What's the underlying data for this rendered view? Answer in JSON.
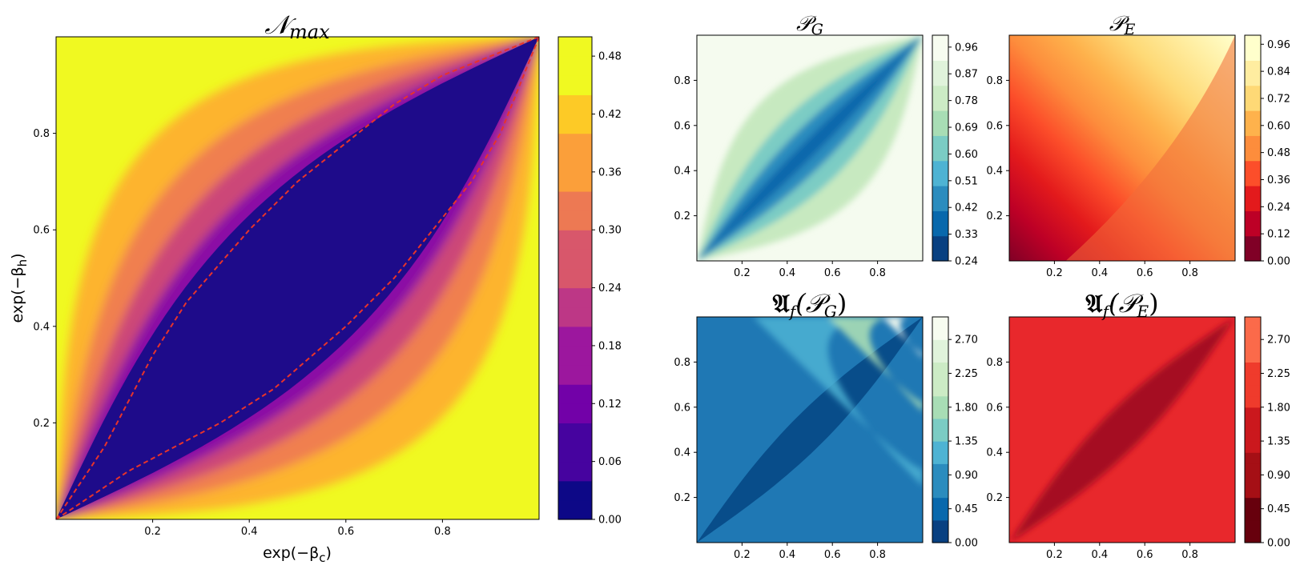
{
  "chart_data": [
    {
      "id": "nmax",
      "type": "heatmap",
      "title_base": "𝒩",
      "title_sub": "max",
      "xlabel": "exp(−β",
      "xlabel_sub": "c",
      "xlabel_end": ")",
      "ylabel": "exp(−β",
      "ylabel_sub": "h",
      "ylabel_end": ")",
      "xlim": [
        0,
        1
      ],
      "ylim": [
        0,
        1
      ],
      "xticks": [
        "0.2",
        "0.4",
        "0.6",
        "0.8"
      ],
      "yticks": [
        "0.2",
        "0.4",
        "0.6",
        "0.8"
      ],
      "colormap": "plasma",
      "colorbar_ticks": [
        "0.00",
        "0.06",
        "0.12",
        "0.18",
        "0.24",
        "0.30",
        "0.36",
        "0.42",
        "0.48"
      ],
      "colorbar_range": [
        0,
        0.5
      ],
      "contour_line_color": "#e8332a",
      "contour_upper": [
        [
          0,
          0
        ],
        [
          0.1,
          0.15
        ],
        [
          0.2,
          0.34
        ],
        [
          0.27,
          0.45
        ],
        [
          0.4,
          0.6
        ],
        [
          0.5,
          0.7
        ],
        [
          0.6,
          0.78
        ],
        [
          0.7,
          0.86
        ],
        [
          0.8,
          0.92
        ],
        [
          0.9,
          0.96
        ],
        [
          1,
          1
        ]
      ],
      "contour_lower": [
        [
          0,
          0
        ],
        [
          0.15,
          0.1
        ],
        [
          0.34,
          0.2
        ],
        [
          0.45,
          0.27
        ],
        [
          0.6,
          0.4
        ],
        [
          0.7,
          0.5
        ],
        [
          0.78,
          0.6
        ],
        [
          0.86,
          0.7
        ],
        [
          0.92,
          0.8
        ],
        [
          0.96,
          0.9
        ],
        [
          1,
          1
        ]
      ]
    },
    {
      "id": "pg",
      "type": "heatmap",
      "title_base": "𝒫",
      "title_sub": "G",
      "xlim": [
        0,
        1
      ],
      "ylim": [
        0,
        1
      ],
      "xticks": [
        "0.2",
        "0.4",
        "0.6",
        "0.8"
      ],
      "yticks": [
        "0.2",
        "0.4",
        "0.6",
        "0.8"
      ],
      "colormap": "GnBu_r",
      "colorbar_ticks": [
        "0.24",
        "0.33",
        "0.42",
        "0.51",
        "0.60",
        "0.69",
        "0.78",
        "0.87",
        "0.96"
      ],
      "colorbar_range": [
        0.24,
        1.0
      ]
    },
    {
      "id": "pe",
      "type": "heatmap",
      "title_base": "𝒫",
      "title_sub": "E",
      "xlim": [
        0,
        1
      ],
      "ylim": [
        0,
        1
      ],
      "xticks": [
        "0.2",
        "0.4",
        "0.6",
        "0.8"
      ],
      "yticks": [
        "0.2",
        "0.4",
        "0.6",
        "0.8"
      ],
      "colormap": "YlOrRd_r",
      "colorbar_ticks": [
        "0.00",
        "0.12",
        "0.24",
        "0.36",
        "0.48",
        "0.60",
        "0.72",
        "0.84",
        "0.96"
      ],
      "colorbar_range": [
        0,
        1.0
      ]
    },
    {
      "id": "apg",
      "type": "heatmap",
      "title_base": "𝔄",
      "title_sub": "f",
      "title_arg_base": "(𝒫",
      "title_arg_sub": "G",
      "title_arg_end": ")",
      "xlim": [
        0,
        1
      ],
      "ylim": [
        0,
        1
      ],
      "xticks": [
        "0.2",
        "0.4",
        "0.6",
        "0.8"
      ],
      "yticks": [
        "0.2",
        "0.4",
        "0.6",
        "0.8"
      ],
      "colormap": "GnBu_r",
      "colorbar_ticks": [
        "0.00",
        "0.45",
        "0.90",
        "1.35",
        "1.80",
        "2.25",
        "2.70"
      ],
      "colorbar_range": [
        0,
        3.0
      ]
    },
    {
      "id": "ape",
      "type": "heatmap",
      "title_base": "𝔄",
      "title_sub": "f",
      "title_arg_base": "(𝒫",
      "title_arg_sub": "E",
      "title_arg_end": ")",
      "xlim": [
        0,
        1
      ],
      "ylim": [
        0,
        1
      ],
      "xticks": [
        "0.2",
        "0.4",
        "0.6",
        "0.8"
      ],
      "yticks": [
        "0.2",
        "0.4",
        "0.6",
        "0.8"
      ],
      "colormap": "Reds_r",
      "colorbar_ticks": [
        "0.00",
        "0.45",
        "0.90",
        "1.35",
        "1.80",
        "2.25",
        "2.70"
      ],
      "colorbar_range": [
        0,
        3.0
      ]
    }
  ]
}
